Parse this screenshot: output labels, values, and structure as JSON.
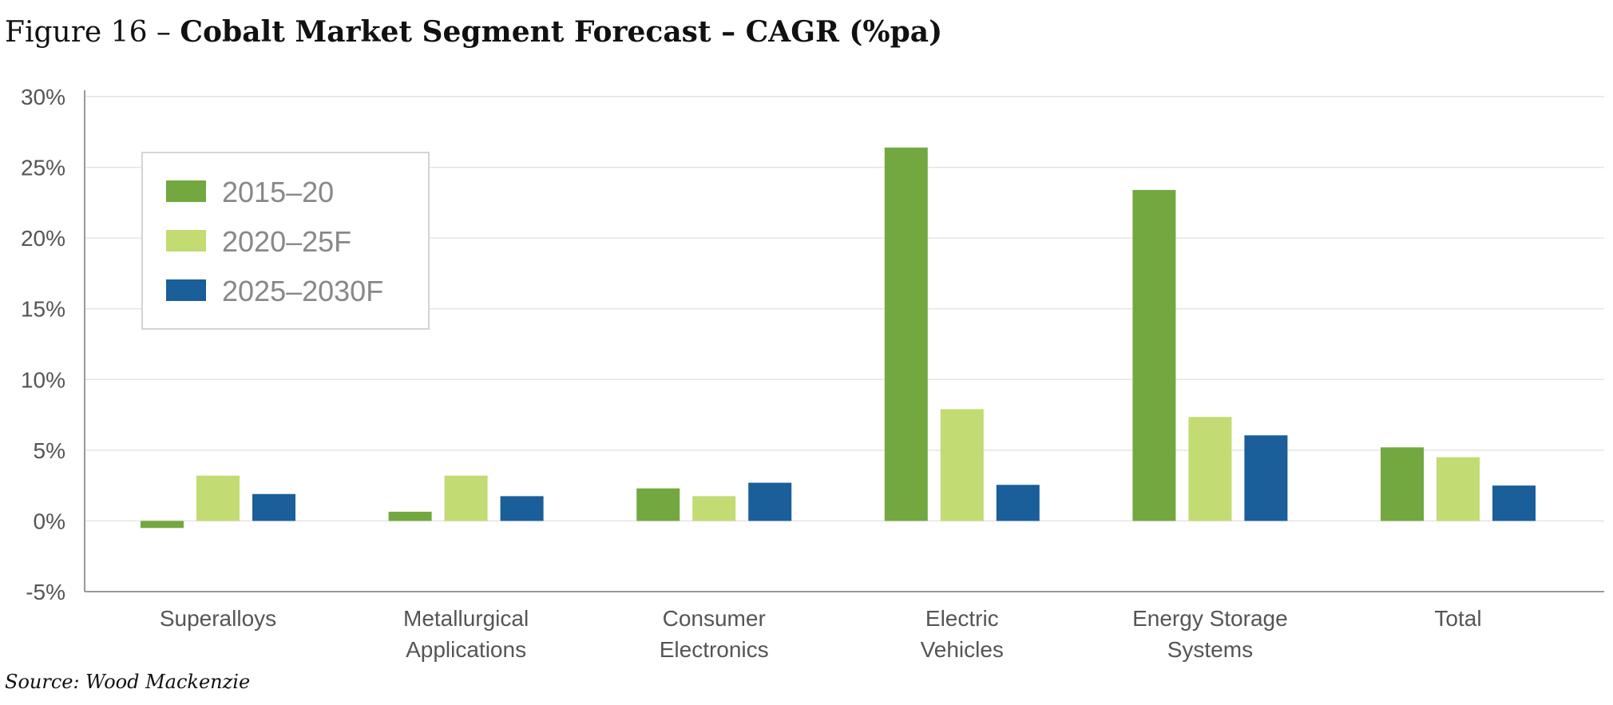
{
  "header": {
    "prefix": "Figure 16 – ",
    "title": "Cobalt Market Segment Forecast – CAGR (%pa)"
  },
  "source": "Source: Wood Mackenzie",
  "chart_data": {
    "type": "bar",
    "title": "Cobalt Market Segment Forecast – CAGR (%pa)",
    "categories": [
      [
        "Superalloys"
      ],
      [
        "Metallurgical",
        "Applications"
      ],
      [
        "Consumer",
        "Electronics"
      ],
      [
        "Electric",
        "Vehicles"
      ],
      [
        "Energy Storage",
        "Systems"
      ],
      [
        "Total"
      ]
    ],
    "series": [
      {
        "name": "2015-20",
        "color": "#72a83f",
        "values": [
          -0.5,
          0.65,
          2.3,
          26.4,
          23.4,
          5.2
        ]
      },
      {
        "name": "2020-25F",
        "color": "#c2db72",
        "values": [
          3.2,
          3.2,
          1.75,
          7.9,
          7.35,
          4.5
        ]
      },
      {
        "name": "2025-2030F",
        "color": "#1a5e9a",
        "values": [
          1.9,
          1.75,
          2.7,
          2.55,
          6.05,
          2.5
        ]
      }
    ],
    "ylim": [
      -5,
      30
    ],
    "yticks": [
      -5,
      0,
      5,
      10,
      15,
      20,
      25,
      30
    ],
    "ytick_labels": [
      "-5%",
      "0%",
      "5%",
      "10%",
      "15%",
      "20%",
      "25%",
      "30%"
    ],
    "grid": true,
    "legend": "top-left",
    "xlabel": "",
    "ylabel": ""
  }
}
